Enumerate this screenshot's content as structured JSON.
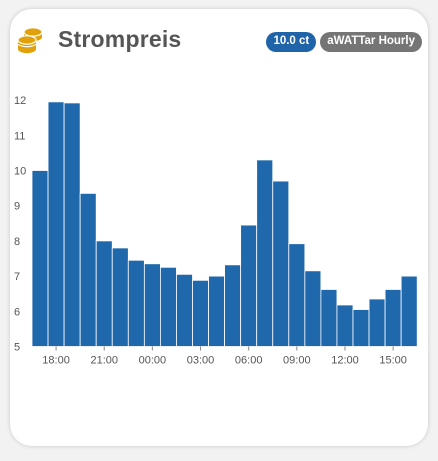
{
  "card": {
    "title": "Strompreis",
    "icon": "coins-icon",
    "current_price_badge": "10.0 ct",
    "source_badge": "aWATTar Hourly"
  },
  "colors": {
    "bar": "#1f68ac",
    "price_badge": "#1f64a8",
    "source_badge": "#757575",
    "icon": "#e0a10c"
  },
  "chart_data": {
    "type": "bar",
    "ylim": [
      5,
      12.4
    ],
    "yticks": [
      5,
      6,
      7,
      8,
      9,
      10,
      11,
      12
    ],
    "xtick_labels": [
      "18:00",
      "21:00",
      "00:00",
      "03:00",
      "06:00",
      "09:00",
      "12:00",
      "15:00"
    ],
    "xtick_positions": [
      1,
      4,
      7,
      10,
      13,
      16,
      19,
      22
    ],
    "grid": false,
    "categories": [
      "17:00",
      "18:00",
      "19:00",
      "20:00",
      "21:00",
      "22:00",
      "23:00",
      "00:00",
      "01:00",
      "02:00",
      "03:00",
      "04:00",
      "05:00",
      "06:00",
      "07:00",
      "08:00",
      "09:00",
      "10:00",
      "11:00",
      "12:00",
      "13:00",
      "14:00",
      "15:00",
      "16:00"
    ],
    "values": [
      10.0,
      11.95,
      11.92,
      9.35,
      8.0,
      7.8,
      7.45,
      7.35,
      7.25,
      7.05,
      6.88,
      7.0,
      7.32,
      8.45,
      10.3,
      9.7,
      7.92,
      7.15,
      6.62,
      6.18,
      6.05,
      6.35,
      6.62,
      7.0
    ]
  }
}
